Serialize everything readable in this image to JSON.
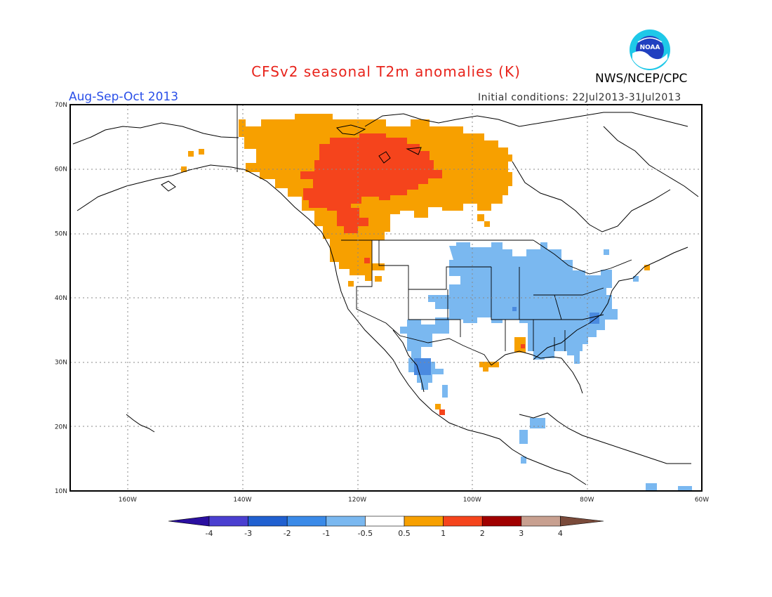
{
  "header": {
    "title": "CFSv2 seasonal T2m anomalies (K)",
    "agency": "NWS/NCEP/CPC",
    "logo_text": "NOAA",
    "period": "Aug-Sep-Oct 2013",
    "initial_conditions": "Initial conditions: 22Jul2013-31Jul2013"
  },
  "axes": {
    "lat_labels": [
      "70N",
      "60N",
      "50N",
      "40N",
      "30N",
      "20N",
      "10N"
    ],
    "lon_labels": [
      "160W",
      "140W",
      "120W",
      "100W",
      "80W",
      "60W"
    ],
    "lat_range": [
      10,
      70
    ],
    "lon_range": [
      -170,
      -60
    ],
    "grid": "dotted"
  },
  "colorbar": {
    "labels": [
      "-4",
      "-3",
      "-2",
      "-1",
      "-0.5",
      "0.5",
      "1",
      "2",
      "3",
      "4"
    ],
    "colors": [
      "#2a0fa0",
      "#4a3fd0",
      "#2060d0",
      "#3a8ae8",
      "#7ab8f0",
      "#ffffff",
      "#f7a000",
      "#f5441c",
      "#a00000",
      "#c8a090",
      "#7a4a3a"
    ]
  },
  "regions": [
    {
      "name": "canada-warm",
      "category": "0.5 to 1",
      "color": "#f7a000"
    },
    {
      "name": "canada-core-warm",
      "category": "1 to 2",
      "color": "#f5441c"
    },
    {
      "name": "us-central-east-cool",
      "category": "-1 to -0.5",
      "color": "#7ab8f0"
    },
    {
      "name": "pacific-northwest-warm",
      "category": "0.5 to 1",
      "color": "#f7a000"
    }
  ]
}
